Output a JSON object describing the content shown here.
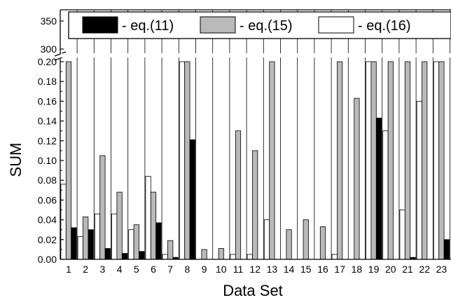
{
  "chart_data": {
    "type": "bar",
    "title": "",
    "xlabel": "Data Set",
    "ylabel": "SUM",
    "broken_axis": true,
    "ylim_lower": [
      0,
      0.2
    ],
    "ylim_upper": [
      300,
      350
    ],
    "yticks_lower": [
      "0.00",
      "0.02",
      "0.04",
      "0.06",
      "0.08",
      "0.10",
      "0.12",
      "0.14",
      "0.16",
      "0.18",
      "0.20"
    ],
    "yticks_upper": [
      "300",
      "350"
    ],
    "categories": [
      "1",
      "2",
      "3",
      "4",
      "5",
      "6",
      "7",
      "8",
      "9",
      "10",
      "11",
      "12",
      "13",
      "14",
      "15",
      "16",
      "17",
      "18",
      "19",
      "20",
      "21",
      "22",
      "23"
    ],
    "series": [
      {
        "name": "- eq.(16)",
        "color": "#ffffff",
        "values": [
          0.076,
          0.023,
          0.046,
          0.046,
          0.03,
          0.084,
          0.005,
          0.2,
          0,
          0,
          0.005,
          0.005,
          0.04,
          0,
          0,
          0,
          0.005,
          0,
          0.2,
          0.13,
          0.05,
          0.16,
          0.2
        ]
      },
      {
        "name": "- eq.(15)",
        "color": "#b9b9b9",
        "values": [
          0.2,
          0.043,
          0.105,
          0.068,
          0.035,
          0.068,
          0.019,
          0.2,
          0.01,
          0.011,
          0.13,
          0.11,
          0.2,
          0.03,
          0.04,
          0.033,
          0.2,
          0.163,
          0.2,
          0.2,
          0.2,
          0.2,
          0.2
        ]
      },
      {
        "name": "- eq.(11)",
        "color": "#000000",
        "values": [
          0.032,
          0.03,
          0.011,
          0.006,
          0.008,
          0.037,
          0.002,
          0.121,
          0,
          0,
          0,
          0,
          0,
          0,
          0,
          0,
          0,
          0,
          0.143,
          0,
          0.002,
          0,
          0.02
        ]
      }
    ],
    "legend_order": [
      "- eq.(11)",
      "- eq.(15)",
      "- eq.(16)"
    ],
    "legend_position": "top",
    "grid": "vertical category separators"
  }
}
